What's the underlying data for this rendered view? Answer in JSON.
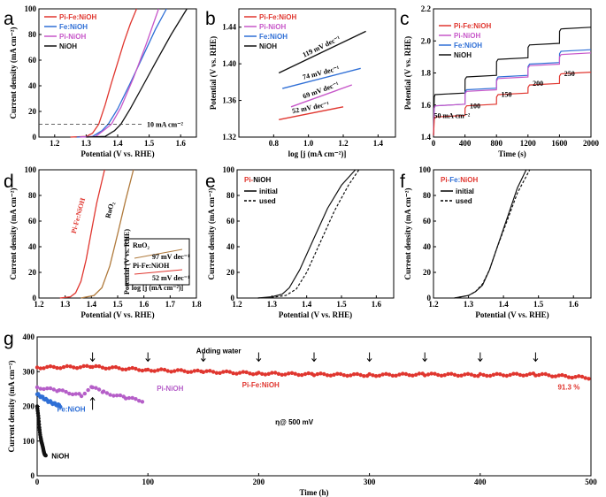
{
  "colors": {
    "PiFe": "#e0362f",
    "Fe": "#2f6fd6",
    "Pi": "#c757c9",
    "NiOH": "#111111",
    "RuO2": "#b07a3c",
    "gPi": "#b55ec8"
  },
  "chart_data": [
    {
      "panel": "a",
      "type": "line",
      "xlabel": "Potential (V vs. RHE)",
      "ylabel": "Current density (mA cm⁻²)",
      "xlim": [
        1.15,
        1.65
      ],
      "ylim": [
        0,
        100
      ],
      "xticks": [
        1.2,
        1.3,
        1.4,
        1.5,
        1.6
      ],
      "yticks": [
        0,
        20,
        40,
        60,
        80,
        100
      ],
      "legend": [
        "Pi-Fe:NiOH",
        "Fe:NiOH",
        "Pi-NiOH",
        "NiOH"
      ],
      "annotation": "10 mA cm⁻²",
      "series": [
        {
          "name": "Pi-Fe:NiOH",
          "color": "PiFe",
          "x": [
            1.25,
            1.3,
            1.32,
            1.34,
            1.36,
            1.38,
            1.4,
            1.42,
            1.44,
            1.46
          ],
          "y": [
            0,
            0.5,
            3,
            10,
            25,
            42,
            58,
            74,
            88,
            100
          ]
        },
        {
          "name": "Fe:NiOH",
          "color": "Fe",
          "x": [
            1.27,
            1.32,
            1.35,
            1.37,
            1.4,
            1.44,
            1.48,
            1.52,
            1.555
          ],
          "y": [
            0,
            0.5,
            5,
            10,
            22,
            42,
            63,
            84,
            100
          ]
        },
        {
          "name": "Pi-NiOH",
          "color": "Pi",
          "x": [
            1.28,
            1.33,
            1.36,
            1.38,
            1.41,
            1.45,
            1.49,
            1.53
          ],
          "y": [
            0,
            0.5,
            6,
            10,
            23,
            46,
            72,
            100
          ]
        },
        {
          "name": "NiOH",
          "color": "NiOH",
          "x": [
            1.3,
            1.36,
            1.39,
            1.41,
            1.44,
            1.48,
            1.52,
            1.57,
            1.62
          ],
          "y": [
            0,
            0.5,
            5,
            10,
            22,
            40,
            58,
            80,
            100
          ]
        }
      ]
    },
    {
      "panel": "b",
      "type": "line",
      "xlabel": "log [j (mA cm⁻²)]",
      "ylabel": "Potential (V vs. RHE)",
      "xlim": [
        0.6,
        1.5
      ],
      "ylim": [
        1.32,
        1.46
      ],
      "xticks": [
        0.8,
        1.0,
        1.2,
        1.4
      ],
      "yticks": [
        1.32,
        1.36,
        1.4,
        1.44
      ],
      "legend": [
        "Pi-Fe:NiOH",
        "Pi-NiOH",
        "Fe:NiOH",
        "NiOH"
      ],
      "series": [
        {
          "name": "NiOH",
          "color": "NiOH",
          "x": [
            0.83,
            1.33
          ],
          "y": [
            1.39,
            1.4355
          ],
          "label": "119 mV dec⁻¹"
        },
        {
          "name": "Fe:NiOH",
          "color": "Fe",
          "x": [
            0.85,
            1.3
          ],
          "y": [
            1.373,
            1.395
          ],
          "label": "74 mV dec⁻¹"
        },
        {
          "name": "Pi-NiOH",
          "color": "Pi",
          "x": [
            0.9,
            1.25
          ],
          "y": [
            1.353,
            1.377
          ],
          "label": "69 mV dec⁻¹"
        },
        {
          "name": "Pi-Fe:NiOH",
          "color": "PiFe",
          "x": [
            0.83,
            1.2
          ],
          "y": [
            1.339,
            1.353
          ],
          "label": "52 mV dec⁻¹"
        }
      ]
    },
    {
      "panel": "c",
      "type": "line",
      "xlabel": "Time (s)",
      "ylabel": "Potential (V vs. RHE)",
      "xlim": [
        0,
        2000
      ],
      "ylim": [
        1.4,
        2.2
      ],
      "xticks": [
        0,
        400,
        800,
        1200,
        1600,
        2000
      ],
      "yticks": [
        1.4,
        1.6,
        1.8,
        2.0,
        2.2
      ],
      "legend": [
        "Pi-Fe:NiOH",
        "Pi-NiOH",
        "Fe:NiOH",
        "NiOH"
      ],
      "step_labels": [
        "50 mA cm⁻²",
        "100",
        "150",
        "200",
        "250"
      ],
      "series": [
        {
          "name": "NiOH",
          "color": "NiOH",
          "levels": [
            1.67,
            1.78,
            1.89,
            1.98,
            2.08
          ]
        },
        {
          "name": "Fe:NiOH",
          "color": "Fe",
          "levels": [
            1.6,
            1.7,
            1.78,
            1.86,
            1.94
          ]
        },
        {
          "name": "Pi-NiOH",
          "color": "Pi",
          "levels": [
            1.6,
            1.69,
            1.77,
            1.85,
            1.92
          ]
        },
        {
          "name": "Pi-Fe:NiOH",
          "color": "PiFe",
          "levels": [
            1.53,
            1.6,
            1.67,
            1.73,
            1.8
          ]
        }
      ]
    },
    {
      "panel": "d",
      "type": "line",
      "xlabel": "Potential (V vs. RHE)",
      "ylabel": "Current density (mA cm⁻²)",
      "xlim": [
        1.2,
        1.8
      ],
      "ylim": [
        0,
        100
      ],
      "xticks": [
        1.2,
        1.3,
        1.4,
        1.5,
        1.6,
        1.7,
        1.8
      ],
      "yticks": [
        0,
        20,
        40,
        60,
        80,
        100
      ],
      "series": [
        {
          "name": "Pi-Fe:NiOH",
          "color": "PiFe",
          "x": [
            1.28,
            1.32,
            1.34,
            1.36,
            1.38,
            1.4,
            1.42,
            1.45
          ],
          "y": [
            0,
            1,
            4,
            13,
            30,
            52,
            74,
            100
          ]
        },
        {
          "name": "RuO₂",
          "color": "RuO2",
          "x": [
            1.36,
            1.41,
            1.44,
            1.47,
            1.5,
            1.53,
            1.56
          ],
          "y": [
            0,
            2,
            8,
            25,
            50,
            76,
            100
          ]
        }
      ],
      "inset": {
        "labels": [
          "RuO₂",
          "97 mV dec⁻¹",
          "Pi-Fe:NiOH",
          "52 mV dec⁻¹"
        ],
        "xlabel": "log [j (mA cm⁻²)]",
        "ylabel": "Potential (V vs. RHE)"
      }
    },
    {
      "panel": "e",
      "type": "line",
      "title": "Pi-NiOH",
      "xlabel": "Potential (V vs. RHE)",
      "ylabel": "Current density (mA cm⁻²)",
      "xlim": [
        1.2,
        1.65
      ],
      "ylim": [
        0,
        100
      ],
      "xticks": [
        1.2,
        1.3,
        1.4,
        1.5,
        1.6
      ],
      "yticks": [
        0,
        20,
        40,
        60,
        80,
        100
      ],
      "legend": [
        "initial",
        "used"
      ],
      "series": [
        {
          "name": "initial",
          "style": "solid",
          "x": [
            1.26,
            1.3,
            1.33,
            1.35,
            1.38,
            1.42,
            1.46,
            1.5,
            1.54
          ],
          "y": [
            0,
            1,
            3,
            8,
            22,
            46,
            70,
            88,
            100
          ]
        },
        {
          "name": "used",
          "style": "dashed",
          "x": [
            1.26,
            1.3,
            1.34,
            1.37,
            1.4,
            1.44,
            1.48,
            1.52,
            1.55
          ],
          "y": [
            0,
            0.5,
            2,
            7,
            20,
            44,
            68,
            88,
            100
          ]
        }
      ]
    },
    {
      "panel": "f",
      "type": "line",
      "title": "Pi-Fe:NiOH",
      "xlabel": "Potential (V vs. RHE)",
      "ylabel": "Current density (mA cm⁻²)",
      "xlim": [
        1.2,
        1.65
      ],
      "ylim": [
        0,
        100
      ],
      "xticks": [
        1.2,
        1.3,
        1.4,
        1.5,
        1.6
      ],
      "yticks": [
        0,
        20,
        40,
        60,
        80,
        100
      ],
      "legend": [
        "initial",
        "used"
      ],
      "series": [
        {
          "name": "initial",
          "style": "solid",
          "x": [
            1.26,
            1.3,
            1.32,
            1.34,
            1.36,
            1.38,
            1.41,
            1.44,
            1.465
          ],
          "y": [
            0,
            2,
            5,
            10,
            22,
            38,
            62,
            86,
            100
          ]
        },
        {
          "name": "used",
          "style": "dashed",
          "x": [
            1.26,
            1.3,
            1.32,
            1.34,
            1.36,
            1.38,
            1.41,
            1.44,
            1.475
          ],
          "y": [
            0,
            2,
            5,
            11,
            22,
            38,
            60,
            82,
            100
          ]
        }
      ]
    },
    {
      "panel": "g",
      "type": "scatter",
      "xlabel": "Time (h)",
      "ylabel": "Current density (mA cm⁻²)",
      "xlim": [
        0,
        500
      ],
      "ylim": [
        0,
        400
      ],
      "xticks": [
        0,
        100,
        200,
        300,
        400,
        500
      ],
      "yticks": [
        0,
        100,
        200,
        300,
        400
      ],
      "annotations": {
        "adding_water": "Adding water",
        "eta": "η@ 500 mV",
        "retention": "91.3 %"
      },
      "water_arrows_h": [
        50,
        100,
        150,
        200,
        250,
        300,
        350,
        400,
        450
      ],
      "series": [
        {
          "name": "Pi-Fe:NiOH",
          "color": "PiFe",
          "x": [
            0,
            50,
            100,
            150,
            200,
            250,
            300,
            350,
            400,
            450,
            500
          ],
          "y": [
            312,
            314,
            305,
            300,
            295,
            292,
            290,
            292,
            290,
            292,
            282
          ]
        },
        {
          "name": "Pi-NiOH",
          "color": "gPi",
          "x": [
            0,
            20,
            40,
            50,
            60,
            80,
            97
          ],
          "y": [
            255,
            245,
            232,
            255,
            240,
            225,
            215
          ]
        },
        {
          "name": "Fe:NiOH",
          "color": "Fe",
          "x": [
            0,
            5,
            10,
            15,
            22
          ],
          "y": [
            235,
            225,
            215,
            208,
            200
          ]
        },
        {
          "name": "NiOH",
          "color": "NiOH",
          "x": [
            0,
            1,
            2,
            3,
            4,
            5,
            6,
            7,
            8
          ],
          "y": [
            200,
            170,
            140,
            115,
            95,
            82,
            72,
            62,
            55
          ]
        }
      ]
    }
  ]
}
